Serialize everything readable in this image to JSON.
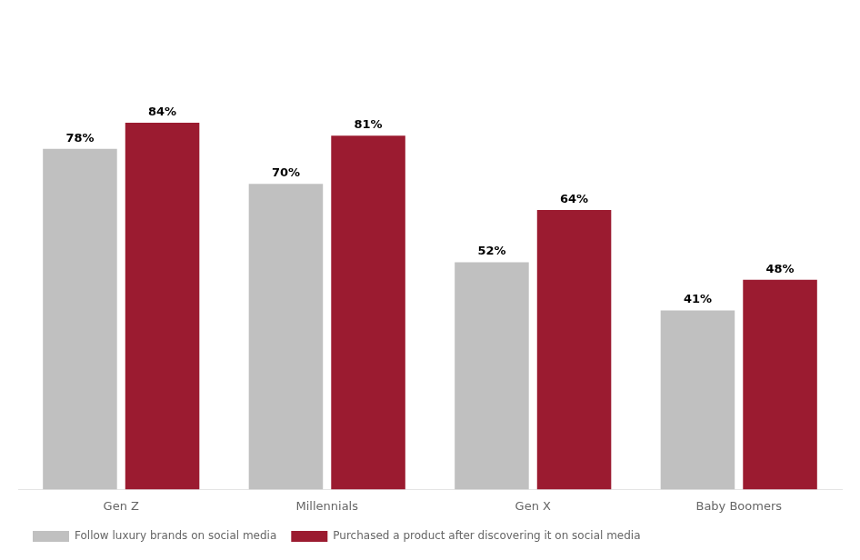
{
  "chart_data": {
    "type": "bar",
    "categories": [
      "Gen Z",
      "Millennials",
      "Gen X",
      "Baby Boomers"
    ],
    "series": [
      {
        "name": "Follow luxury brands on social media",
        "color": "#C0C0C0",
        "values": [
          78,
          70,
          52,
          41
        ],
        "value_labels": [
          "78%",
          "70%",
          "52%",
          "41%"
        ]
      },
      {
        "name": "Purchased a product after discovering it on social media",
        "color": "#9B1B30",
        "values": [
          84,
          81,
          64,
          48
        ],
        "value_labels": [
          "84%",
          "81%",
          "64%",
          "48%"
        ]
      }
    ],
    "ylim": [
      0,
      110
    ],
    "grid": false,
    "legend": "lower left",
    "data_labels": true,
    "tick_labels": "x"
  }
}
